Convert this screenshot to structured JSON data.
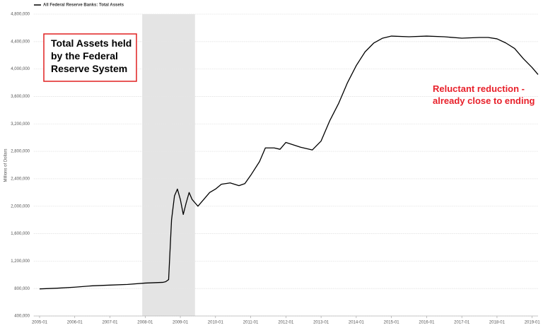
{
  "chart_data": {
    "type": "line",
    "legend_label": "All Federal Reserve Banks: Total Assets",
    "ylabel": "Millions of Dollars",
    "annotations": [
      "Total Assets held by the Federal Reserve System",
      "Reluctant reduction - already close to ending"
    ],
    "recession": {
      "start": "2007-12",
      "end": "2009-06",
      "color": "#e4e4e4"
    },
    "grid": true,
    "xlim": [
      "2004-11",
      "2019-03"
    ],
    "xticks": [
      "2005-01",
      "2006-01",
      "2007-01",
      "2008-01",
      "2009-01",
      "2010-01",
      "2011-01",
      "2012-01",
      "2013-01",
      "2014-01",
      "2015-01",
      "2016-01",
      "2017-01",
      "2018-01",
      "2019-01"
    ],
    "ylim": [
      400000,
      4800000
    ],
    "yticks": [
      {
        "value": 400000,
        "label": "400,000"
      },
      {
        "value": 800000,
        "label": "800,000"
      },
      {
        "value": 1200000,
        "label": "1,200,000"
      },
      {
        "value": 1600000,
        "label": "1,600,000"
      },
      {
        "value": 2000000,
        "label": "2,000,000"
      },
      {
        "value": 2400000,
        "label": "2,400,000"
      },
      {
        "value": 2800000,
        "label": "2,800,000"
      },
      {
        "value": 3200000,
        "label": "3,200,000"
      },
      {
        "value": 3600000,
        "label": "3,600,000"
      },
      {
        "value": 4000000,
        "label": "4,000,000"
      },
      {
        "value": 4400000,
        "label": "4,400,000"
      },
      {
        "value": 4800000,
        "label": "4,800,000"
      }
    ],
    "x": [
      "2005-01",
      "2005-07",
      "2006-01",
      "2006-07",
      "2007-01",
      "2007-07",
      "2008-01",
      "2008-07",
      "2008-08",
      "2008-09",
      "2008-10",
      "2008-11",
      "2008-12",
      "2009-01",
      "2009-02",
      "2009-03",
      "2009-04",
      "2009-05",
      "2009-06",
      "2009-07",
      "2009-09",
      "2009-11",
      "2010-01",
      "2010-03",
      "2010-06",
      "2010-09",
      "2010-11",
      "2011-01",
      "2011-04",
      "2011-06",
      "2011-09",
      "2011-11",
      "2012-01",
      "2012-06",
      "2012-10",
      "2013-01",
      "2013-04",
      "2013-07",
      "2013-10",
      "2014-01",
      "2014-04",
      "2014-07",
      "2014-10",
      "2015-01",
      "2015-07",
      "2016-01",
      "2016-07",
      "2017-01",
      "2017-07",
      "2017-10",
      "2018-01",
      "2018-04",
      "2018-07",
      "2018-10",
      "2019-01",
      "2019-03"
    ],
    "series": [
      {
        "name": "All Federal Reserve Banks: Total Assets",
        "color": "#000000",
        "values": [
          795000,
          805000,
          820000,
          840000,
          850000,
          860000,
          880000,
          890000,
          900000,
          930000,
          1800000,
          2150000,
          2250000,
          2100000,
          1880000,
          2050000,
          2200000,
          2100000,
          2050000,
          2000000,
          2100000,
          2200000,
          2250000,
          2320000,
          2340000,
          2300000,
          2330000,
          2450000,
          2650000,
          2850000,
          2850000,
          2830000,
          2930000,
          2860000,
          2820000,
          2950000,
          3250000,
          3500000,
          3800000,
          4050000,
          4250000,
          4380000,
          4450000,
          4480000,
          4470000,
          4480000,
          4470000,
          4450000,
          4460000,
          4460000,
          4440000,
          4380000,
          4300000,
          4150000,
          4020000,
          3920000
        ]
      }
    ]
  }
}
